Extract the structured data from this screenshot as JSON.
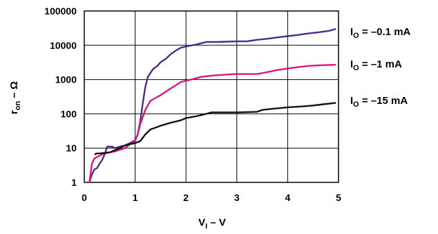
{
  "chart_data": {
    "type": "line",
    "title": "",
    "xlabel_main": "V",
    "xlabel_sub": "I",
    "xlabel_rest": " – V",
    "ylabel_main": "r",
    "ylabel_sub": "on",
    "ylabel_rest": " – Ω",
    "xlim": [
      0,
      5
    ],
    "ylim": [
      1,
      100000
    ],
    "yscale": "log",
    "grid": true,
    "x_ticks": [
      "0",
      "1",
      "2",
      "3",
      "4",
      "5"
    ],
    "y_ticks": [
      "1",
      "10",
      "100",
      "1000",
      "10000",
      "100000"
    ],
    "series": [
      {
        "name_main": "I",
        "name_sub": "O",
        "name_rest": " = –0.1 mA",
        "color": "#4b2a8c",
        "points": [
          [
            0.1,
            1
          ],
          [
            0.15,
            1.7
          ],
          [
            0.2,
            2.4
          ],
          [
            0.25,
            2.6
          ],
          [
            0.3,
            3.5
          ],
          [
            0.35,
            4.5
          ],
          [
            0.4,
            6.5
          ],
          [
            0.45,
            11
          ],
          [
            0.55,
            11
          ],
          [
            0.6,
            10
          ],
          [
            0.7,
            11
          ],
          [
            0.8,
            12
          ],
          [
            0.9,
            14
          ],
          [
            1.0,
            17
          ],
          [
            1.05,
            25
          ],
          [
            1.1,
            60
          ],
          [
            1.15,
            200
          ],
          [
            1.2,
            600
          ],
          [
            1.25,
            1200
          ],
          [
            1.35,
            2000
          ],
          [
            1.45,
            2600
          ],
          [
            1.5,
            3200
          ],
          [
            1.6,
            4000
          ],
          [
            1.7,
            5500
          ],
          [
            1.8,
            7000
          ],
          [
            1.9,
            8500
          ],
          [
            2.0,
            9200
          ],
          [
            2.2,
            10500
          ],
          [
            2.4,
            12500
          ],
          [
            2.6,
            12500
          ],
          [
            2.8,
            12800
          ],
          [
            3.0,
            13000
          ],
          [
            3.2,
            13000
          ],
          [
            3.4,
            14500
          ],
          [
            3.6,
            15500
          ],
          [
            3.8,
            17000
          ],
          [
            4.0,
            18500
          ],
          [
            4.2,
            20000
          ],
          [
            4.4,
            22000
          ],
          [
            4.6,
            24000
          ],
          [
            4.8,
            26000
          ],
          [
            4.95,
            30000
          ]
        ]
      },
      {
        "name_main": "I",
        "name_sub": "O",
        "name_rest": " = –1 mA",
        "color": "#e0147a",
        "points": [
          [
            0.1,
            1
          ],
          [
            0.15,
            3.5
          ],
          [
            0.2,
            5
          ],
          [
            0.25,
            5.5
          ],
          [
            0.3,
            6
          ],
          [
            0.4,
            7
          ],
          [
            0.6,
            8
          ],
          [
            0.8,
            10
          ],
          [
            0.9,
            13
          ],
          [
            1.0,
            16
          ],
          [
            1.05,
            25
          ],
          [
            1.1,
            50
          ],
          [
            1.2,
            130
          ],
          [
            1.3,
            240
          ],
          [
            1.5,
            350
          ],
          [
            1.7,
            550
          ],
          [
            1.9,
            850
          ],
          [
            2.1,
            1000
          ],
          [
            2.3,
            1200
          ],
          [
            2.5,
            1300
          ],
          [
            2.8,
            1400
          ],
          [
            3.0,
            1450
          ],
          [
            3.4,
            1450
          ],
          [
            3.6,
            1650
          ],
          [
            3.8,
            1900
          ],
          [
            4.0,
            2100
          ],
          [
            4.2,
            2300
          ],
          [
            4.4,
            2500
          ],
          [
            4.6,
            2600
          ],
          [
            4.95,
            2700
          ]
        ]
      },
      {
        "name_main": "I",
        "name_sub": "O",
        "name_rest": " = –15 mA",
        "color": "#111111",
        "points": [
          [
            0.2,
            6.5
          ],
          [
            0.25,
            7
          ],
          [
            0.3,
            7
          ],
          [
            0.5,
            7.5
          ],
          [
            0.7,
            10
          ],
          [
            0.8,
            12
          ],
          [
            0.9,
            13
          ],
          [
            1.0,
            14
          ],
          [
            1.1,
            16
          ],
          [
            1.2,
            25
          ],
          [
            1.3,
            35
          ],
          [
            1.5,
            45
          ],
          [
            1.7,
            55
          ],
          [
            1.9,
            65
          ],
          [
            2.0,
            75
          ],
          [
            2.2,
            85
          ],
          [
            2.4,
            100
          ],
          [
            2.5,
            110
          ],
          [
            3.0,
            110
          ],
          [
            3.4,
            115
          ],
          [
            3.5,
            130
          ],
          [
            3.7,
            140
          ],
          [
            4.0,
            155
          ],
          [
            4.3,
            165
          ],
          [
            4.5,
            175
          ],
          [
            4.7,
            190
          ],
          [
            4.95,
            210
          ]
        ]
      }
    ]
  }
}
